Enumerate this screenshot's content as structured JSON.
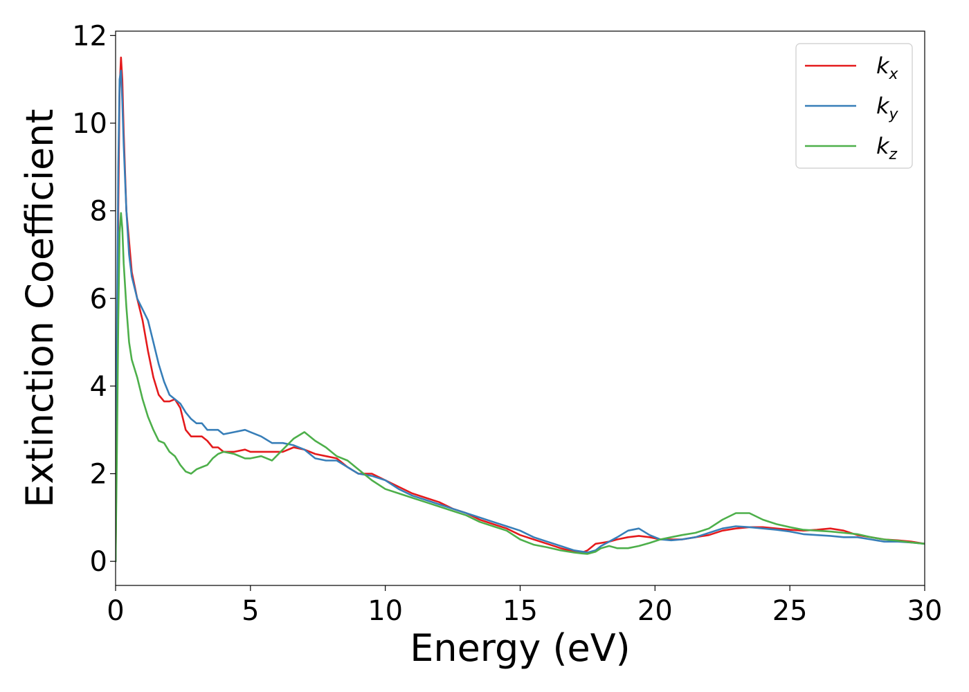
{
  "chart_data": {
    "type": "line",
    "title": "",
    "xlabel": "Energy (eV)",
    "ylabel": "Extinction Coefficient",
    "xlim": [
      0,
      30
    ],
    "ylim": [
      -0.55,
      12.1
    ],
    "xticks": [
      "0",
      "5",
      "10",
      "15",
      "20",
      "25",
      "30"
    ],
    "yticks": [
      "0",
      "2",
      "4",
      "6",
      "8",
      "10",
      "12"
    ],
    "grid": false,
    "legend_position": "top-right",
    "series": [
      {
        "name_base": "k",
        "name_sub": "x",
        "color": "#e41a1c",
        "x": [
          0,
          0.05,
          0.1,
          0.15,
          0.2,
          0.25,
          0.3,
          0.4,
          0.5,
          0.6,
          0.8,
          1.0,
          1.2,
          1.4,
          1.6,
          1.8,
          2.0,
          2.2,
          2.4,
          2.6,
          2.8,
          3.0,
          3.2,
          3.4,
          3.6,
          3.8,
          4.0,
          4.4,
          4.8,
          5.0,
          5.4,
          5.8,
          6.2,
          6.6,
          7.0,
          7.4,
          7.8,
          8.2,
          8.6,
          9.0,
          9.5,
          10.0,
          10.5,
          11.0,
          11.5,
          12.0,
          12.5,
          13.0,
          13.5,
          14.0,
          14.5,
          15.0,
          15.5,
          16.0,
          16.5,
          17.0,
          17.3,
          17.5,
          17.8,
          18.0,
          18.3,
          18.6,
          19.0,
          19.4,
          19.8,
          20.2,
          20.6,
          21.0,
          21.5,
          22.0,
          22.5,
          23.0,
          23.5,
          24.0,
          24.5,
          25.0,
          25.5,
          26.0,
          26.5,
          27.0,
          27.5,
          28.0,
          28.5,
          29.0,
          29.5,
          30.0
        ],
        "y": [
          0.0,
          3.5,
          8.0,
          10.8,
          11.5,
          11.0,
          9.8,
          8.0,
          7.3,
          6.6,
          6.0,
          5.5,
          4.8,
          4.2,
          3.8,
          3.65,
          3.65,
          3.7,
          3.5,
          3.0,
          2.85,
          2.85,
          2.85,
          2.75,
          2.6,
          2.6,
          2.5,
          2.5,
          2.55,
          2.5,
          2.5,
          2.5,
          2.5,
          2.6,
          2.55,
          2.45,
          2.4,
          2.35,
          2.15,
          2.0,
          2.0,
          1.85,
          1.7,
          1.55,
          1.45,
          1.35,
          1.2,
          1.1,
          0.95,
          0.85,
          0.75,
          0.6,
          0.5,
          0.4,
          0.3,
          0.22,
          0.2,
          0.25,
          0.4,
          0.42,
          0.45,
          0.5,
          0.55,
          0.58,
          0.55,
          0.5,
          0.5,
          0.5,
          0.55,
          0.6,
          0.7,
          0.75,
          0.78,
          0.78,
          0.75,
          0.72,
          0.7,
          0.72,
          0.75,
          0.7,
          0.6,
          0.55,
          0.5,
          0.48,
          0.45,
          0.4
        ]
      },
      {
        "name_base": "k",
        "name_sub": "y",
        "color": "#377eb8",
        "x": [
          0,
          0.05,
          0.1,
          0.15,
          0.2,
          0.25,
          0.3,
          0.4,
          0.5,
          0.6,
          0.8,
          1.0,
          1.2,
          1.4,
          1.6,
          1.8,
          2.0,
          2.2,
          2.4,
          2.6,
          2.8,
          3.0,
          3.2,
          3.4,
          3.6,
          3.8,
          4.0,
          4.4,
          4.8,
          5.0,
          5.4,
          5.8,
          6.2,
          6.6,
          7.0,
          7.4,
          7.8,
          8.2,
          8.6,
          9.0,
          9.5,
          10.0,
          10.5,
          11.0,
          11.5,
          12.0,
          12.5,
          13.0,
          13.5,
          14.0,
          14.5,
          15.0,
          15.5,
          16.0,
          16.5,
          17.0,
          17.3,
          17.5,
          17.8,
          18.0,
          18.3,
          18.6,
          19.0,
          19.4,
          19.8,
          20.2,
          20.6,
          21.0,
          21.5,
          22.0,
          22.5,
          23.0,
          23.5,
          24.0,
          24.5,
          25.0,
          25.5,
          26.0,
          26.5,
          27.0,
          27.5,
          28.0,
          28.5,
          29.0,
          29.5,
          30.0
        ],
        "y": [
          0.0,
          5.0,
          9.0,
          11.0,
          11.2,
          10.5,
          9.5,
          8.0,
          7.0,
          6.5,
          6.0,
          5.75,
          5.5,
          5.0,
          4.5,
          4.1,
          3.8,
          3.7,
          3.6,
          3.4,
          3.25,
          3.15,
          3.15,
          3.0,
          3.0,
          3.0,
          2.9,
          2.95,
          3.0,
          2.95,
          2.85,
          2.7,
          2.7,
          2.65,
          2.55,
          2.35,
          2.3,
          2.3,
          2.15,
          2.0,
          1.95,
          1.85,
          1.65,
          1.5,
          1.4,
          1.3,
          1.2,
          1.1,
          1.0,
          0.9,
          0.8,
          0.7,
          0.55,
          0.45,
          0.35,
          0.25,
          0.22,
          0.2,
          0.25,
          0.35,
          0.45,
          0.55,
          0.7,
          0.75,
          0.6,
          0.5,
          0.48,
          0.5,
          0.55,
          0.65,
          0.75,
          0.8,
          0.78,
          0.75,
          0.72,
          0.68,
          0.62,
          0.6,
          0.58,
          0.55,
          0.55,
          0.5,
          0.45,
          0.45,
          0.43,
          0.4
        ]
      },
      {
        "name_base": "k",
        "name_sub": "z",
        "color": "#4daf4a",
        "x": [
          0,
          0.05,
          0.1,
          0.15,
          0.2,
          0.25,
          0.3,
          0.4,
          0.5,
          0.6,
          0.8,
          1.0,
          1.2,
          1.4,
          1.6,
          1.8,
          2.0,
          2.2,
          2.4,
          2.6,
          2.8,
          3.0,
          3.2,
          3.4,
          3.6,
          3.8,
          4.0,
          4.4,
          4.8,
          5.0,
          5.4,
          5.8,
          6.2,
          6.6,
          7.0,
          7.4,
          7.8,
          8.2,
          8.6,
          9.0,
          9.5,
          10.0,
          10.5,
          11.0,
          11.5,
          12.0,
          12.5,
          13.0,
          13.5,
          14.0,
          14.5,
          15.0,
          15.5,
          16.0,
          16.5,
          17.0,
          17.3,
          17.5,
          17.8,
          18.0,
          18.3,
          18.6,
          19.0,
          19.4,
          19.8,
          20.2,
          20.6,
          21.0,
          21.5,
          22.0,
          22.5,
          23.0,
          23.5,
          24.0,
          24.5,
          25.0,
          25.5,
          26.0,
          26.5,
          27.0,
          27.5,
          28.0,
          28.5,
          29.0,
          29.5,
          30.0
        ],
        "y": [
          0.0,
          2.5,
          5.5,
          7.5,
          7.95,
          7.6,
          6.8,
          5.8,
          5.0,
          4.6,
          4.2,
          3.7,
          3.3,
          3.0,
          2.75,
          2.7,
          2.5,
          2.4,
          2.2,
          2.05,
          2.0,
          2.1,
          2.15,
          2.2,
          2.35,
          2.45,
          2.5,
          2.45,
          2.35,
          2.35,
          2.4,
          2.3,
          2.55,
          2.8,
          2.95,
          2.75,
          2.6,
          2.4,
          2.3,
          2.1,
          1.85,
          1.65,
          1.55,
          1.45,
          1.35,
          1.25,
          1.15,
          1.05,
          0.9,
          0.8,
          0.7,
          0.5,
          0.38,
          0.32,
          0.25,
          0.2,
          0.18,
          0.17,
          0.22,
          0.3,
          0.35,
          0.3,
          0.3,
          0.35,
          0.42,
          0.5,
          0.55,
          0.6,
          0.65,
          0.75,
          0.95,
          1.1,
          1.1,
          0.95,
          0.85,
          0.78,
          0.72,
          0.7,
          0.68,
          0.65,
          0.62,
          0.55,
          0.5,
          0.47,
          0.43,
          0.4
        ]
      }
    ]
  }
}
